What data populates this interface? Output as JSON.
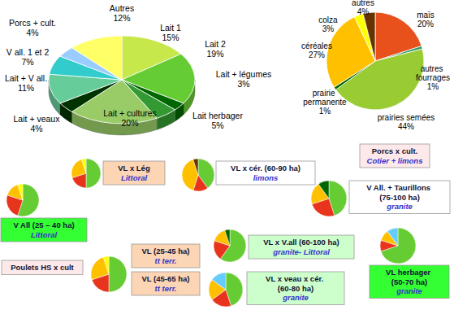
{
  "chart_data": [
    {
      "type": "pie",
      "categories": [
        "Lait 1",
        "Lait 2",
        "Lait + légumes",
        "Lait herbager",
        "Lait + cultures",
        "Lait + veaux",
        "Lait + V all.",
        "V all. 1 et 2",
        "Porcs + cult.",
        "Autres"
      ],
      "values": [
        15,
        19,
        3,
        5,
        20,
        4,
        11,
        7,
        4,
        12
      ],
      "value_labels": [
        "15%",
        "19%",
        "3%",
        "5%",
        "20%",
        "4%",
        "11%",
        "7%",
        "4%",
        "12%"
      ],
      "colors": [
        "#c6e84a",
        "#66cc33",
        "#006600",
        "#339933",
        "#99cc66",
        "#003300",
        "#66cc99",
        "#33cccc",
        "#99ccff",
        "#ffff66"
      ],
      "data_labels": true
    },
    {
      "type": "pie",
      "categories": [
        "maïs",
        "autres fourrages",
        "prairies semées",
        "prairie permanente",
        "céréales",
        "colza",
        "autres"
      ],
      "values": [
        20,
        1,
        44,
        1,
        27,
        3,
        4
      ],
      "value_labels": [
        "20%",
        "1%",
        "44%",
        "1%",
        "27%",
        "3%",
        "4%"
      ],
      "colors": [
        "#e8501c",
        "#339966",
        "#99cc33",
        "#006600",
        "#ffc000",
        "#ffff00",
        "#663300"
      ],
      "data_labels": true
    },
    {
      "type": "pie",
      "values": [
        50,
        20,
        25,
        5
      ],
      "colors": [
        "#66cc33",
        "#e8341c",
        "#ffc000",
        "#ffff00"
      ],
      "annotations": [
        {
          "text": "VL x Lég",
          "subtext": "Littoral"
        }
      ]
    },
    {
      "type": "pie",
      "values": [
        40,
        15,
        40,
        5
      ],
      "colors": [
        "#66cc33",
        "#e8341c",
        "#ffc000",
        "#663300"
      ],
      "annotations": [
        {
          "text": "VL x cér. (60-90 ha)",
          "subtext": "limons"
        }
      ]
    },
    {
      "type": "pie",
      "values": [
        45,
        25,
        20,
        10
      ],
      "colors": [
        "#66cc33",
        "#e8341c",
        "#ffc000",
        "#006600"
      ],
      "annotations": [
        {
          "text": "V All. + Taurillons (75-100 ha)",
          "subtext": "granite"
        }
      ]
    },
    {
      "type": "pie",
      "values": [
        55,
        25,
        15,
        5
      ],
      "colors": [
        "#66cc33",
        "#e8341c",
        "#ffc000",
        "#ffff00"
      ],
      "annotations": [
        {
          "text": "V All (25 – 40 ha)",
          "subtext": "Littoral"
        }
      ]
    },
    {
      "type": "pie",
      "values": [
        50,
        20,
        25,
        5
      ],
      "colors": [
        "#66cc33",
        "#e8341c",
        "#ffc000",
        "#ffff00"
      ],
      "annotations": [
        {
          "text": "VL (25-45 ha)",
          "subtext": "tt terr."
        },
        {
          "text": "VL (45-65 ha)",
          "subtext": "tt terr."
        }
      ]
    },
    {
      "type": "pie",
      "values": [
        60,
        20,
        15,
        5
      ],
      "colors": [
        "#66cc33",
        "#e8341c",
        "#ffc000",
        "#006600"
      ],
      "annotations": [
        {
          "text": "VL x V.all (60-100 ha)",
          "subtext": "granite- Littoral"
        }
      ]
    },
    {
      "type": "pie",
      "values": [
        70,
        10,
        10,
        10
      ],
      "colors": [
        "#66cc33",
        "#e8341c",
        "#ffc000",
        "#66ccff"
      ],
      "annotations": [
        {
          "text": "VL herbager (50-70 ha)",
          "subtext": "granite"
        }
      ]
    },
    {
      "type": "pie",
      "values": [
        45,
        20,
        20,
        15
      ],
      "colors": [
        "#66cc33",
        "#e8341c",
        "#ffc000",
        "#66ccff"
      ],
      "annotations": [
        {
          "text": "VL x veau x cér. (60-80 ha)",
          "subtext": "granite"
        }
      ]
    }
  ],
  "annotations": [
    {
      "text": "Porcs x cult.",
      "subtext": "Cotier + limons"
    },
    {
      "text": "Poulets HS x cult"
    }
  ]
}
